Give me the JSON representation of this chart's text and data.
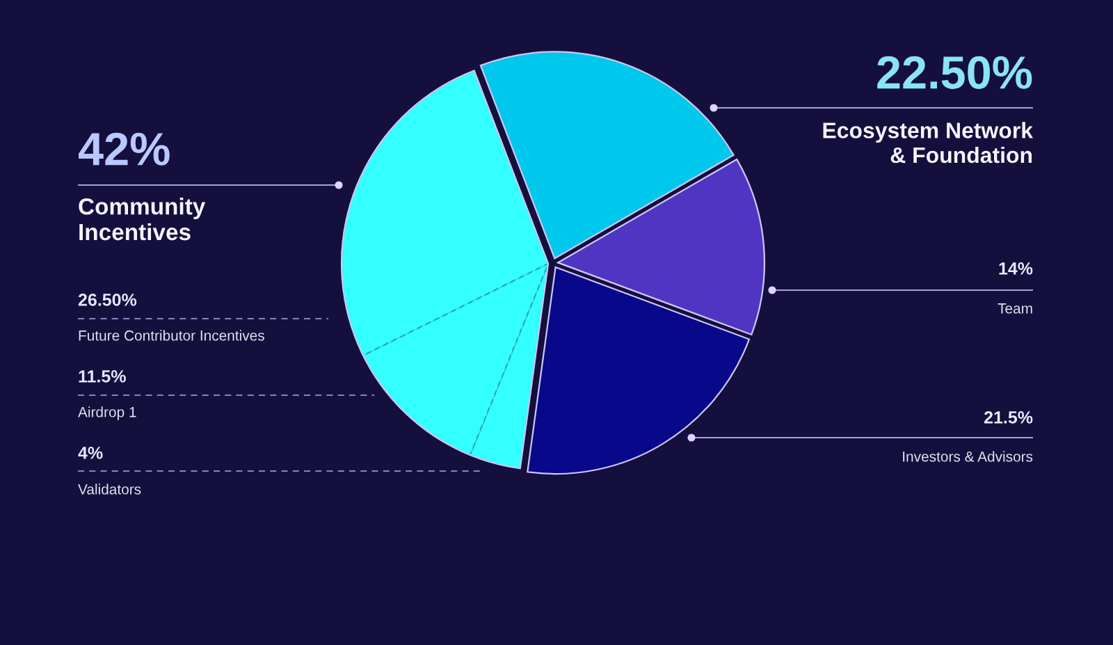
{
  "chart_data": {
    "type": "pie",
    "categories": [
      "Ecosystem Network\n& Foundation",
      "Team",
      "Investors & Advisors",
      "Validators",
      "Airdrop 1",
      "Future Contributor Incentives"
    ],
    "values": [
      22.5,
      14,
      21.5,
      4,
      11.5,
      26.5
    ],
    "value_labels": [
      "22.50%",
      "14%",
      "21.5%",
      "4%",
      "11.5%",
      "26.50%"
    ],
    "colors": [
      "#00c8ec",
      "#5035c2",
      "#08088a",
      "#33ffff",
      "#33ffff",
      "#33ffff"
    ],
    "annotations": [
      "42%",
      "Community\nIncentives"
    ]
  }
}
